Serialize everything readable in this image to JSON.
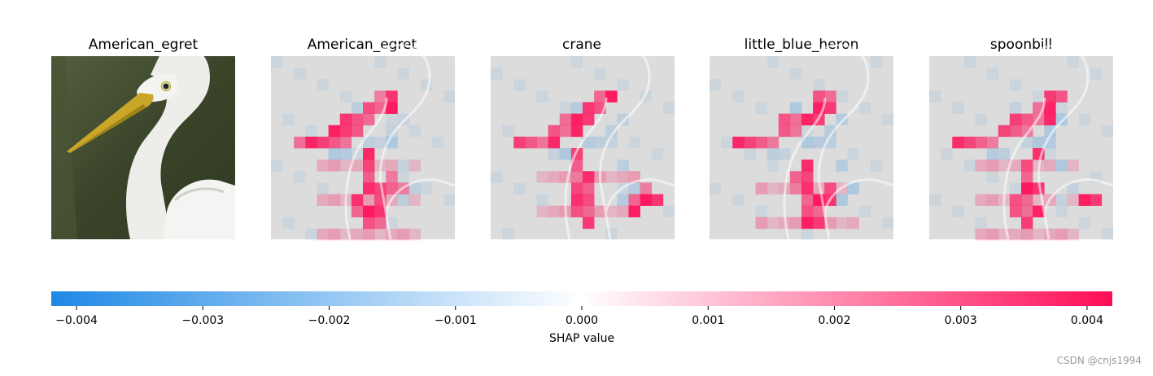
{
  "chart_data": {
    "type": "heatmap",
    "panels": [
      {
        "title": "American_egret",
        "kind": "image"
      },
      {
        "title": "American_egret",
        "kind": "shap"
      },
      {
        "title": "crane",
        "kind": "shap"
      },
      {
        "title": "little_blue_heron",
        "kind": "shap"
      },
      {
        "title": "spoonbill",
        "kind": "shap"
      }
    ],
    "colorbar": {
      "label": "SHAP value",
      "min": -0.0042,
      "max": 0.0042,
      "ticks": [
        -0.004,
        -0.003,
        -0.002,
        -0.001,
        0.0,
        0.001,
        0.002,
        0.003,
        0.004
      ],
      "tick_labels": [
        "−0.004",
        "−0.003",
        "−0.002",
        "−0.001",
        "0.000",
        "0.001",
        "0.002",
        "0.003",
        "0.004"
      ],
      "negative_color": "#1e88e5",
      "positive_color": "#ff0d57"
    }
  },
  "colors": {
    "photo_background": "#3f4a2e",
    "bird": "#f1f1ef",
    "beak": "#c9a627",
    "overlay_gray": "#dcdcdc"
  },
  "watermark": "CSDN @cnjs1994"
}
